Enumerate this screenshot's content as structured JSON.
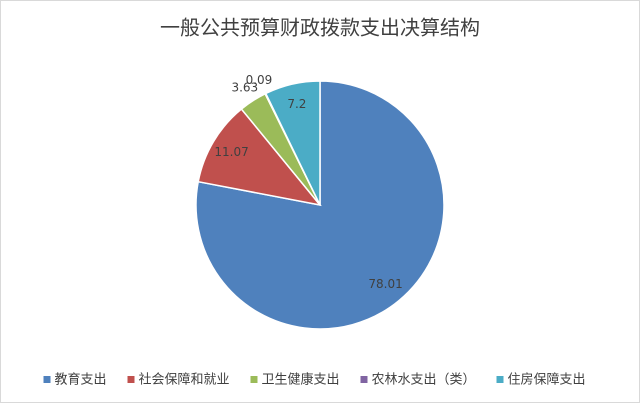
{
  "chart_data": {
    "type": "pie",
    "title": "一般公共预算财政拨款支出决算结构",
    "categories": [
      "教育支出",
      "社会保障和就业",
      "卫生健康支出",
      "农林水支出（类）",
      "住房保障支出"
    ],
    "values": [
      78.01,
      11.07,
      3.63,
      0.09,
      7.2
    ],
    "colors": [
      "#4f81bd",
      "#c0504d",
      "#9bbb59",
      "#8064a2",
      "#4bacc6"
    ],
    "legend": "bottom"
  }
}
